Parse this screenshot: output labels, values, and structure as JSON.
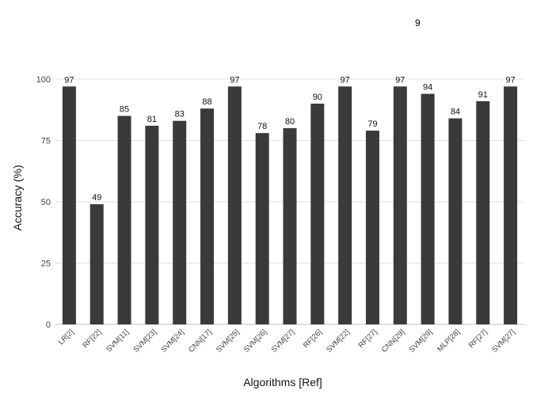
{
  "page_number": "9",
  "chart_data": {
    "type": "bar",
    "categories": [
      "LR[2]",
      "RF[22]",
      "SVM[11]",
      "SVM[23]",
      "SVM[24]",
      "CNN[17]",
      "SVM[25]",
      "SVM[26]",
      "SVM[27]",
      "RF[26]",
      "SVM[22]",
      "RF[27]",
      "CNN[29]",
      "SVM[29]",
      "MLP[28]",
      "RF[27]",
      "SVM[27]"
    ],
    "values": [
      97,
      49,
      85,
      81,
      83,
      88,
      97,
      78,
      80,
      90,
      97,
      79,
      97,
      94,
      84,
      91,
      97
    ],
    "xlabel": "Algorithms [Ref]",
    "ylabel": "Accuracy (%)",
    "ylim": [
      0,
      100
    ],
    "yticks": [
      0,
      25,
      50,
      75,
      100
    ],
    "grid": true,
    "bar_color": "#3a3a3a"
  }
}
